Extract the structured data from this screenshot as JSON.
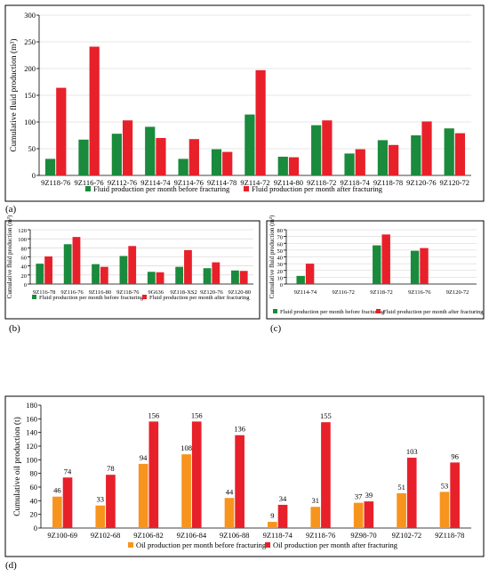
{
  "panels": [
    {
      "id": "a",
      "label": "(a)",
      "chart_data": {
        "type": "bar",
        "ylabel": "Cumulative fluid production (m³)",
        "ylim": [
          0,
          300
        ],
        "yticks": [
          0,
          50,
          100,
          150,
          200,
          250,
          300
        ],
        "grid": true,
        "legend_position": "bottom",
        "categories": [
          "9Z118-76",
          "9Z116-76",
          "9Z112-76",
          "9Z114-74",
          "9Z114-76",
          "9Z114-78",
          "9Z114-72",
          "9Z114-80",
          "9Z118-72",
          "9Z118-74",
          "9Z118-78",
          "9Z120-76",
          "9Z120-72"
        ],
        "series": [
          {
            "name": "Fluid production per month before fracturing",
            "color": "#1a8a3c",
            "values": [
              31,
              67,
              78,
              91,
              31,
              49,
              114,
              35,
              94,
              41,
              66,
              75,
              88
            ]
          },
          {
            "name": "Fluid production per month after fracturing",
            "color": "#e8202a",
            "values": [
              164,
              241,
              103,
              70,
              68,
              44,
              197,
              34,
              103,
              49,
              57,
              101,
              79
            ]
          }
        ]
      }
    },
    {
      "id": "b",
      "label": "(b)",
      "chart_data": {
        "type": "bar",
        "ylabel": "Cumulative fluid production (m³)",
        "ylim": [
          0,
          120
        ],
        "yticks": [
          0,
          20,
          40,
          60,
          80,
          100,
          120
        ],
        "grid": true,
        "legend_position": "bottom",
        "categories": [
          "9Z116-78",
          "9Z116-76",
          "9Z116-80",
          "9Z118-76",
          "9G636",
          "9Z118-XS2",
          "9Z120-76",
          "9Z120-80"
        ],
        "series": [
          {
            "name": "Fluid production per month before fracturing",
            "color": "#1a8a3c",
            "values": [
              45,
              88,
              44,
              62,
              27,
              38,
              35,
              30
            ]
          },
          {
            "name": "Fluid production per month after fracturing",
            "color": "#e8202a",
            "values": [
              61,
              104,
              38,
              84,
              26,
              75,
              48,
              29
            ]
          }
        ]
      }
    },
    {
      "id": "c",
      "label": "(c)",
      "chart_data": {
        "type": "bar",
        "ylabel": "Cumulative fluid production (m³)",
        "ylim": [
          0,
          80
        ],
        "yticks": [
          0,
          10,
          20,
          30,
          40,
          50,
          60,
          70,
          80
        ],
        "grid": true,
        "legend_position": "bottom",
        "categories": [
          "9Z114-74",
          "9Z116-72",
          "9Z118-72",
          "9Z116-76",
          "9Z120-72"
        ],
        "series": [
          {
            "name": "Fluid production per month before fracturing",
            "color": "#1a8a3c",
            "values": [
              12,
              0,
              57,
              49,
              0
            ]
          },
          {
            "name": "Fluid production per month after fracturing",
            "color": "#e8202a",
            "values": [
              30,
              0,
              73,
              53,
              0
            ]
          }
        ]
      }
    },
    {
      "id": "d",
      "label": "(d)",
      "chart_data": {
        "type": "bar",
        "ylabel": "Cumulative oil production (t)",
        "ylim": [
          0,
          180
        ],
        "yticks": [
          0,
          20,
          40,
          60,
          80,
          100,
          120,
          140,
          160,
          180
        ],
        "grid": false,
        "legend_position": "bottom",
        "data_labels": true,
        "categories": [
          "9Z100-69",
          "9Z102-68",
          "9Z106-82",
          "9Z106-84",
          "9Z106-88",
          "9Z118-74",
          "9Z118-76",
          "9Z98-70",
          "9Z102-72",
          "9Z118-78"
        ],
        "series": [
          {
            "name": "Oil production per month before fracturing",
            "color": "#f7941d",
            "values": [
              46,
              33,
              94,
              108,
              44,
              9,
              31,
              37,
              51,
              53
            ]
          },
          {
            "name": "Oil production per month after fracturing",
            "color": "#e8202a",
            "values": [
              74,
              78,
              156,
              156,
              136,
              34,
              155,
              39,
              103,
              96
            ]
          }
        ]
      }
    }
  ]
}
